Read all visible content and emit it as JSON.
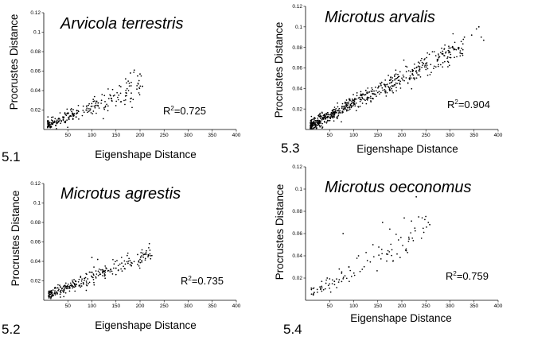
{
  "chart_data": [
    {
      "type": "scatter",
      "panel_label": "5.1",
      "title": "Arvicola terrestris",
      "xlabel": "Eigenshape Distance",
      "ylabel": "Procrustes Distance",
      "r2_prefix": "R",
      "r2_sup": "2",
      "r2_value": "=0.725",
      "xlim": [
        0,
        400
      ],
      "ylim": [
        0,
        0.12
      ],
      "xticks": [
        50,
        100,
        150,
        200,
        250,
        300,
        350,
        400
      ],
      "yticks": [
        0.02,
        0.04,
        0.06,
        0.08,
        0.1,
        0.12
      ],
      "xtick_labels": [
        "50",
        "100",
        "150",
        "200",
        "250",
        "300",
        "350",
        "400"
      ],
      "ytick_labels": [
        "0.02",
        "0.04",
        "0.06",
        "0.08",
        "0.1",
        "0.12"
      ],
      "cluster": {
        "n": 230,
        "x_range": [
          8,
          205
        ],
        "slope": 0.000205,
        "intercept": 0.0025,
        "noise": 0.0065
      },
      "points": [
        [
          14,
          0.002
        ],
        [
          18,
          0.006
        ],
        [
          25,
          0.004
        ],
        [
          32,
          0.009
        ],
        [
          40,
          0.012
        ],
        [
          55,
          0.014
        ],
        [
          70,
          0.017
        ],
        [
          88,
          0.02
        ],
        [
          105,
          0.024
        ],
        [
          120,
          0.03
        ],
        [
          140,
          0.032
        ],
        [
          160,
          0.044
        ],
        [
          170,
          0.052
        ],
        [
          180,
          0.058
        ],
        [
          188,
          0.061
        ],
        [
          195,
          0.055
        ],
        [
          200,
          0.057
        ]
      ]
    },
    {
      "type": "scatter",
      "panel_label": "5.2",
      "title": "Microtus agrestis",
      "xlabel": "Eigenshape Distance",
      "ylabel": "Procrustes Distance",
      "r2_prefix": "R",
      "r2_sup": "2",
      "r2_value": "=0.735",
      "xlim": [
        0,
        400
      ],
      "ylim": [
        0,
        0.12
      ],
      "xticks": [
        50,
        100,
        150,
        200,
        250,
        300,
        350,
        400
      ],
      "yticks": [
        0.02,
        0.04,
        0.06,
        0.08,
        0.1,
        0.12
      ],
      "xtick_labels": [
        "50",
        "100",
        "150",
        "200",
        "250",
        "300",
        "350",
        "400"
      ],
      "ytick_labels": [
        "0.02",
        "0.04",
        "0.06",
        "0.08",
        "0.1",
        "0.12"
      ],
      "cluster": {
        "n": 260,
        "x_range": [
          10,
          225
        ],
        "slope": 0.000195,
        "intercept": 0.004,
        "noise": 0.0055
      },
      "points": [
        [
          15,
          0.003
        ],
        [
          22,
          0.007
        ],
        [
          30,
          0.01
        ],
        [
          48,
          0.012
        ],
        [
          65,
          0.016
        ],
        [
          82,
          0.018
        ],
        [
          100,
          0.044
        ],
        [
          112,
          0.042
        ],
        [
          125,
          0.03
        ],
        [
          150,
          0.033
        ],
        [
          175,
          0.038
        ],
        [
          195,
          0.047
        ],
        [
          202,
          0.049
        ],
        [
          218,
          0.046
        ]
      ]
    },
    {
      "type": "scatter",
      "panel_label": "5.3",
      "title": "Microtus arvalis",
      "xlabel": "Eigenshape Distance",
      "ylabel": "Procrustes Distance",
      "r2_prefix": "R",
      "r2_sup": "2",
      "r2_value": "=0.904",
      "xlim": [
        0,
        400
      ],
      "ylim": [
        0,
        0.12
      ],
      "xticks": [
        50,
        100,
        150,
        200,
        250,
        300,
        350,
        400
      ],
      "yticks": [
        0.02,
        0.04,
        0.06,
        0.08,
        0.1,
        0.12
      ],
      "xtick_labels": [
        "50",
        "100",
        "150",
        "200",
        "250",
        "300",
        "350",
        "400"
      ],
      "ytick_labels": [
        "0.02",
        "0.04",
        "0.06",
        "0.08",
        "0.1",
        "0.12"
      ],
      "cluster": {
        "n": 620,
        "x_range": [
          10,
          330
        ],
        "slope": 0.00024,
        "intercept": 0.002,
        "noise": 0.0065
      },
      "points": [
        [
          12,
          0.002
        ],
        [
          20,
          0.004
        ],
        [
          30,
          0.008
        ],
        [
          60,
          0.016
        ],
        [
          100,
          0.026
        ],
        [
          150,
          0.036
        ],
        [
          200,
          0.05
        ],
        [
          250,
          0.064
        ],
        [
          300,
          0.075
        ],
        [
          330,
          0.09
        ],
        [
          345,
          0.092
        ],
        [
          355,
          0.098
        ],
        [
          360,
          0.1
        ],
        [
          365,
          0.09
        ],
        [
          370,
          0.087
        ]
      ]
    },
    {
      "type": "scatter",
      "panel_label": "5.4",
      "title": "Microtus oeconomus",
      "xlabel": "Eigenshape Distance",
      "ylabel": "Procrustes Distance",
      "r2_prefix": "R",
      "r2_sup": "2",
      "r2_value": "=0.759",
      "xlim": [
        0,
        400
      ],
      "ylim": [
        0,
        0.12
      ],
      "xticks": [
        50,
        100,
        150,
        200,
        250,
        300,
        350,
        400
      ],
      "yticks": [
        0.02,
        0.04,
        0.06,
        0.08,
        0.1,
        0.12
      ],
      "xtick_labels": [
        "50",
        "100",
        "150",
        "200",
        "250",
        "300",
        "350",
        "400"
      ],
      "ytick_labels": [
        "0.02",
        "0.04",
        "0.06",
        "0.08",
        "0.1",
        "0.12"
      ],
      "cluster": {
        "n": 95,
        "x_range": [
          12,
          255
        ],
        "slope": 0.00024,
        "intercept": 0.002,
        "noise": 0.0075
      },
      "points": [
        [
          18,
          0.007
        ],
        [
          30,
          0.012
        ],
        [
          45,
          0.02
        ],
        [
          60,
          0.017
        ],
        [
          78,
          0.06
        ],
        [
          90,
          0.03
        ],
        [
          110,
          0.04
        ],
        [
          140,
          0.05
        ],
        [
          160,
          0.07
        ],
        [
          175,
          0.064
        ],
        [
          205,
          0.074
        ],
        [
          215,
          0.055
        ],
        [
          230,
          0.093
        ],
        [
          235,
          0.075
        ],
        [
          255,
          0.07
        ],
        [
          258,
          0.068
        ]
      ]
    }
  ]
}
